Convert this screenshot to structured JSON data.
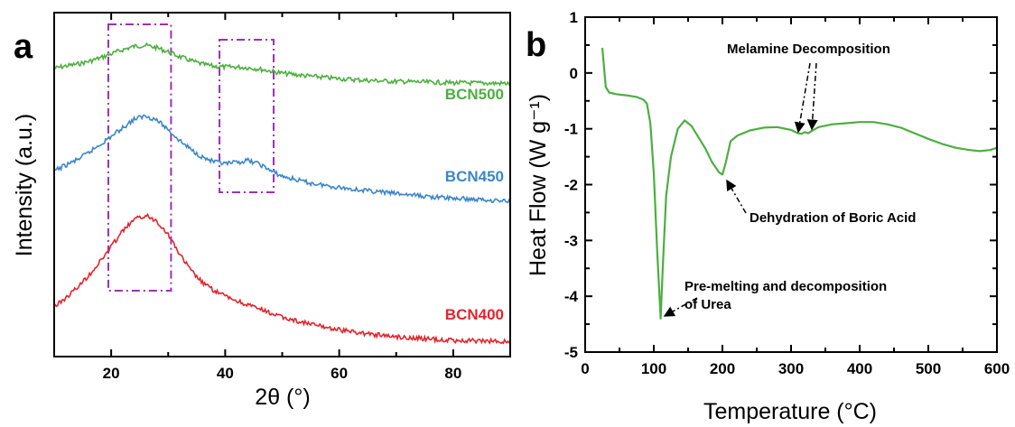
{
  "chart_data": [
    {
      "type": "line",
      "panel_label": "a",
      "xlabel": "2θ (°)",
      "ylabel": "Intensity (a.u.)",
      "xlim": [
        10,
        90
      ],
      "ylim": [
        0,
        1
      ],
      "x_ticks": [
        20,
        40,
        60,
        80
      ],
      "y_ticks_labeled": false,
      "x_values": [
        10,
        12,
        14,
        16,
        18,
        20,
        22,
        24,
        26,
        28,
        30,
        32,
        34,
        36,
        38,
        40,
        42,
        44,
        46,
        48,
        50,
        55,
        60,
        65,
        70,
        75,
        80,
        85,
        90
      ],
      "series": [
        {
          "name": "BCN500",
          "color": "#4caf3f",
          "values": [
            0.838,
            0.845,
            0.85,
            0.858,
            0.868,
            0.88,
            0.892,
            0.902,
            0.905,
            0.898,
            0.886,
            0.872,
            0.86,
            0.85,
            0.844,
            0.842,
            0.842,
            0.84,
            0.836,
            0.83,
            0.824,
            0.815,
            0.808,
            0.803,
            0.8,
            0.798,
            0.796,
            0.795,
            0.794
          ]
        },
        {
          "name": "BCN450",
          "color": "#3a87c9",
          "values": [
            0.54,
            0.556,
            0.572,
            0.592,
            0.616,
            0.64,
            0.665,
            0.69,
            0.7,
            0.688,
            0.66,
            0.628,
            0.602,
            0.58,
            0.566,
            0.56,
            0.564,
            0.57,
            0.56,
            0.54,
            0.524,
            0.504,
            0.492,
            0.482,
            0.474,
            0.466,
            0.46,
            0.456,
            0.452
          ]
        },
        {
          "name": "BCN400",
          "color": "#e3242b",
          "values": [
            0.145,
            0.17,
            0.2,
            0.235,
            0.275,
            0.32,
            0.365,
            0.398,
            0.41,
            0.395,
            0.355,
            0.298,
            0.25,
            0.215,
            0.192,
            0.176,
            0.162,
            0.15,
            0.138,
            0.126,
            0.114,
            0.094,
            0.078,
            0.066,
            0.058,
            0.052,
            0.047,
            0.045,
            0.044
          ]
        }
      ],
      "highlight_boxes_x": [
        [
          19.5,
          30.5
        ],
        [
          39,
          48.5
        ]
      ],
      "highlight_color": "#9b30b5"
    },
    {
      "type": "line",
      "panel_label": "b",
      "xlabel": "Temperature (°C)",
      "ylabel": "Heat Flow (W g⁻¹)",
      "xlim": [
        0,
        600
      ],
      "ylim": [
        -5,
        1
      ],
      "x_ticks": [
        0,
        100,
        200,
        300,
        400,
        500,
        600
      ],
      "y_ticks": [
        1,
        0,
        -1,
        -2,
        -3,
        -4,
        -5
      ],
      "series": [
        {
          "name": "",
          "color": "#4caf3f",
          "x": [
            25,
            30,
            35,
            45,
            60,
            75,
            85,
            90,
            95,
            100,
            105,
            110,
            113,
            118,
            125,
            135,
            145,
            155,
            165,
            175,
            185,
            195,
            200,
            205,
            212,
            222,
            240,
            260,
            280,
            300,
            310,
            315,
            320,
            325,
            330,
            340,
            360,
            380,
            400,
            420,
            440,
            460,
            480,
            500,
            520,
            540,
            560,
            575,
            590,
            600
          ],
          "values": [
            0.45,
            -0.25,
            -0.35,
            -0.38,
            -0.4,
            -0.43,
            -0.48,
            -0.55,
            -0.9,
            -1.8,
            -3.2,
            -4.4,
            -3.5,
            -2.2,
            -1.5,
            -1.0,
            -0.85,
            -0.95,
            -1.15,
            -1.35,
            -1.6,
            -1.78,
            -1.82,
            -1.6,
            -1.22,
            -1.12,
            -1.03,
            -0.98,
            -0.97,
            -1.02,
            -1.08,
            -1.09,
            -1.06,
            -1.08,
            -1.04,
            -0.97,
            -0.92,
            -0.9,
            -0.88,
            -0.88,
            -0.92,
            -0.98,
            -1.08,
            -1.18,
            -1.27,
            -1.34,
            -1.38,
            -1.4,
            -1.38,
            -1.34
          ]
        }
      ],
      "annotations": {
        "melamine": "Melamine Decomposition",
        "boric": "Dehydration of Boric Acid",
        "urea_line1": "Pre-melting and decomposition",
        "urea_line2": "of Urea"
      }
    }
  ]
}
